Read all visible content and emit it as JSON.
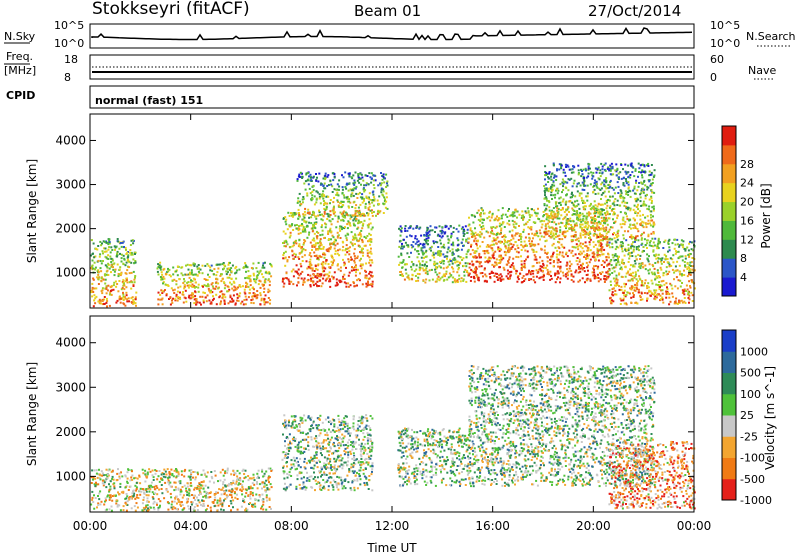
{
  "header": {
    "station": "Stokkseyri (fitACF)",
    "beam": "Beam 01",
    "date": "27/Oct/2014"
  },
  "top_panels": {
    "nsky_label": "N.Sky",
    "nsky_ticks": [
      "10^5",
      "10^0"
    ],
    "nsearch_label": "N.Search",
    "nsearch_ticks": [
      "10^5",
      "10^0"
    ],
    "freq_label": "Freq.",
    "freq_unit": "[MHz]",
    "freq_ticks": [
      "18",
      "8"
    ],
    "nave_label": "Nave",
    "nave_ticks": [
      "60",
      "0"
    ],
    "cpid_label": "CPID",
    "cpid_text": "normal (fast) 151"
  },
  "chart_data": [
    {
      "type": "heatmap",
      "name": "power",
      "ylabel": "Slant Range [km]",
      "xlabel": "",
      "yticks": [
        "1000",
        "2000",
        "3000",
        "4000"
      ],
      "ylim": [
        200,
        4600
      ],
      "colorbar": {
        "label": "Power [dB]",
        "ticks": [
          "4",
          "8",
          "12",
          "16",
          "20",
          "24",
          "28"
        ],
        "colors": [
          "#1a1ad0",
          "#2b56c8",
          "#2d8a4e",
          "#4fb93a",
          "#9ad12a",
          "#e8d21e",
          "#f2a020",
          "#ef6a1a",
          "#e01d10"
        ]
      },
      "regions": [
        {
          "t0": 0.0,
          "t1": 1.8,
          "r0": 250,
          "r1": 1800,
          "level": 0.55
        },
        {
          "t0": 2.6,
          "t1": 7.2,
          "r0": 300,
          "r1": 1250,
          "level": 0.65
        },
        {
          "t0": 7.6,
          "t1": 11.2,
          "r0": 700,
          "r1": 2400,
          "level": 0.72
        },
        {
          "t0": 8.2,
          "t1": 11.8,
          "r0": 2300,
          "r1": 3300,
          "level": 0.3
        },
        {
          "t0": 12.2,
          "t1": 15.0,
          "r0": 800,
          "r1": 2100,
          "level": 0.2
        },
        {
          "t0": 15.0,
          "t1": 20.6,
          "r0": 800,
          "r1": 2500,
          "level": 0.78
        },
        {
          "t0": 20.6,
          "t1": 24.0,
          "r0": 300,
          "r1": 1800,
          "level": 0.55
        },
        {
          "t0": 18.0,
          "t1": 22.4,
          "r0": 1800,
          "r1": 3500,
          "level": 0.35
        }
      ]
    },
    {
      "type": "heatmap",
      "name": "velocity",
      "ylabel": "Slant Range [km]",
      "xlabel": "Time UT",
      "yticks": [
        "1000",
        "2000",
        "3000",
        "4000"
      ],
      "ylim": [
        200,
        4600
      ],
      "xticks": [
        "00:00",
        "04:00",
        "08:00",
        "12:00",
        "16:00",
        "20:00",
        "00:00"
      ],
      "xlim": [
        0,
        24
      ],
      "colorbar": {
        "label": "Velocity [m s^-1]",
        "ticks": [
          "1000",
          "500",
          "100",
          "25",
          "-25",
          "-100",
          "-500",
          "-1000"
        ],
        "colors": [
          "#1a3ec8",
          "#2d6a9c",
          "#2e8b57",
          "#4fc23a",
          "#c8c8c8",
          "#f3a530",
          "#f07a14",
          "#e5201a"
        ]
      },
      "regions": [
        {
          "t0": 0.0,
          "t1": 7.2,
          "r0": 250,
          "r1": 1200,
          "level": 0.6
        },
        {
          "t0": 7.6,
          "t1": 11.2,
          "r0": 700,
          "r1": 2400,
          "level": 0.45
        },
        {
          "t0": 12.2,
          "t1": 15.0,
          "r0": 800,
          "r1": 2100,
          "level": 0.45
        },
        {
          "t0": 15.0,
          "t1": 22.4,
          "r0": 800,
          "r1": 3500,
          "level": 0.45
        },
        {
          "t0": 20.6,
          "t1": 24.0,
          "r0": 300,
          "r1": 1800,
          "level": 0.75
        }
      ]
    }
  ]
}
